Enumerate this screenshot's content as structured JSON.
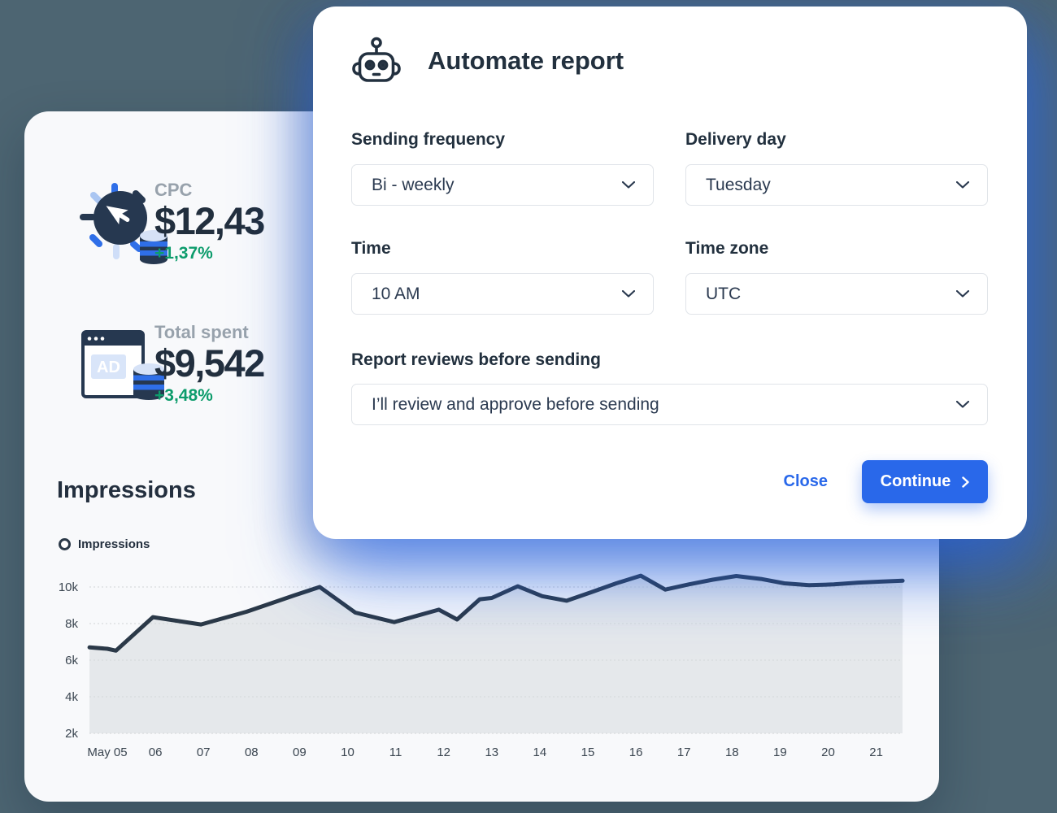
{
  "page": {
    "background_color": "#4d6572"
  },
  "modal": {
    "title": "Automate report",
    "fields": {
      "sending_frequency": {
        "label": "Sending frequency",
        "value": "Bi - weekly"
      },
      "delivery_day": {
        "label": "Delivery day",
        "value": "Tuesday"
      },
      "time": {
        "label": "Time",
        "value": "10 AM"
      },
      "time_zone": {
        "label": "Time zone",
        "value": "UTC"
      },
      "report_reviews": {
        "label": "Report reviews before sending",
        "value": "I’ll review and approve before sending"
      }
    },
    "buttons": {
      "close": "Close",
      "continue": "Continue"
    },
    "accent_color": "#2968ea"
  },
  "stats": {
    "cpc": {
      "label": "CPC",
      "value": "$12,43",
      "delta": "+1,37%"
    },
    "total_spent": {
      "label": "Total spent",
      "value": "$9,542",
      "delta": "+3,48%"
    }
  },
  "impressions": {
    "heading": "Impressions",
    "legend_label": "Impressions"
  },
  "status_colors": {
    "positive": "#0d9c6c",
    "muted_label": "#98a2ac",
    "heading": "#232f3e"
  },
  "chart_data": {
    "type": "area",
    "title": "Impressions",
    "legend": [
      "Impressions"
    ],
    "x_tick_labels": [
      "May 05",
      "06",
      "07",
      "08",
      "09",
      "10",
      "11",
      "12",
      "13",
      "14",
      "15",
      "16",
      "17",
      "18",
      "19",
      "20",
      "21"
    ],
    "y_ticks": [
      {
        "value": 2,
        "label": "2k"
      },
      {
        "value": 4,
        "label": "4k"
      },
      {
        "value": 6,
        "label": "6k"
      },
      {
        "value": 8,
        "label": "8k"
      },
      {
        "value": 10,
        "label": "10k"
      }
    ],
    "y_axis_range_k": [
      2,
      10
    ],
    "grid": true,
    "legend_position": "top-left",
    "points_day_valueK": [
      [
        4.63,
        6.7
      ],
      [
        5.0,
        6.62
      ],
      [
        5.18,
        6.52
      ],
      [
        5.95,
        8.35
      ],
      [
        6.95,
        7.95
      ],
      [
        7.9,
        8.65
      ],
      [
        8.9,
        9.55
      ],
      [
        9.42,
        10.0
      ],
      [
        10.16,
        8.6
      ],
      [
        10.97,
        8.08
      ],
      [
        11.9,
        8.76
      ],
      [
        12.28,
        8.22
      ],
      [
        12.75,
        9.33
      ],
      [
        13.0,
        9.4
      ],
      [
        13.54,
        10.04
      ],
      [
        14.05,
        9.5
      ],
      [
        14.56,
        9.25
      ],
      [
        15.08,
        9.72
      ],
      [
        15.59,
        10.2
      ],
      [
        16.1,
        10.62
      ],
      [
        16.61,
        9.86
      ],
      [
        17.1,
        10.14
      ],
      [
        17.6,
        10.4
      ],
      [
        18.09,
        10.6
      ],
      [
        18.6,
        10.44
      ],
      [
        19.09,
        10.2
      ],
      [
        19.6,
        10.1
      ],
      [
        20.12,
        10.14
      ],
      [
        20.63,
        10.24
      ],
      [
        21.14,
        10.3
      ],
      [
        21.55,
        10.34
      ]
    ],
    "line_color": "#2b3948",
    "fill_color": "#dfe2e6",
    "grid_color": "#d7dadd",
    "tick_label_color": "#3a4550"
  }
}
